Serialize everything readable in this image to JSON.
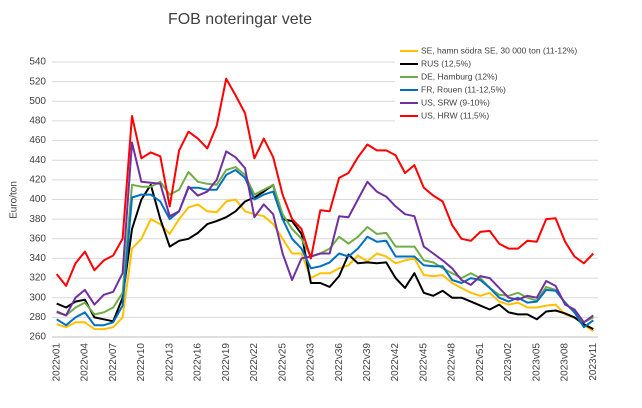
{
  "chart_data": {
    "type": "line",
    "title": "FOB noteringar vete",
    "y_label": "Euro/ton",
    "categories": [
      "2022v01",
      null,
      null,
      "2022v04",
      null,
      null,
      "2022v07",
      null,
      null,
      "2022v10",
      null,
      null,
      "2022v13",
      null,
      null,
      "2022v16",
      null,
      null,
      "2022v19",
      null,
      null,
      "2022v22",
      null,
      null,
      "2022v25",
      null,
      null,
      "2022v33",
      null,
      null,
      "2022v36",
      null,
      null,
      "2022v39",
      null,
      null,
      "2022v42",
      null,
      null,
      "2022v45",
      null,
      null,
      "2022v48",
      null,
      null,
      "2022v51",
      null,
      null,
      "2023v02",
      null,
      null,
      "2023v05",
      null,
      null,
      "2023v08",
      null,
      null,
      "2023v11"
    ],
    "ylim": [
      260,
      540
    ],
    "yticks": [
      260,
      280,
      300,
      320,
      340,
      360,
      380,
      400,
      420,
      440,
      460,
      480,
      500,
      520,
      540
    ],
    "grid": true,
    "series": [
      {
        "name": "SE, hamn södra SE, 30 000 ton (11-12%)",
        "color": "#ffc000",
        "values": [
          273,
          270,
          275,
          275,
          268,
          268,
          270,
          280,
          350,
          360,
          380,
          375,
          365,
          380,
          392,
          395,
          388,
          387,
          398,
          400,
          388,
          385,
          383,
          375,
          360,
          345,
          345,
          320,
          325,
          325,
          330,
          333,
          343,
          337,
          345,
          342,
          335,
          338,
          340,
          323,
          322,
          323,
          315,
          310,
          305,
          302,
          305,
          296,
          293,
          295,
          290,
          290,
          292,
          293,
          283,
          280,
          272,
          266
        ]
      },
      {
        "name": "RUS (12,5%)",
        "color": "#000000",
        "values": [
          294,
          290,
          296,
          298,
          280,
          278,
          276,
          300,
          370,
          400,
          415,
          380,
          352,
          358,
          360,
          366,
          375,
          378,
          382,
          388,
          398,
          402,
          408,
          415,
          380,
          378,
          365,
          315,
          315,
          311,
          322,
          344,
          335,
          336,
          335,
          336,
          320,
          310,
          325,
          305,
          302,
          307,
          300,
          300,
          296,
          292,
          288,
          293,
          285,
          283,
          283,
          278,
          286,
          287,
          284,
          280,
          273,
          268
        ]
      },
      {
        "name": "DE, Hamburg (12%)",
        "color": "#70ad47",
        "values": [
          285,
          282,
          290,
          295,
          283,
          285,
          290,
          305,
          415,
          413,
          413,
          418,
          405,
          410,
          428,
          418,
          416,
          415,
          430,
          433,
          425,
          405,
          410,
          415,
          385,
          370,
          360,
          342,
          345,
          350,
          362,
          355,
          362,
          372,
          365,
          366,
          352,
          352,
          352,
          338,
          336,
          330,
          325,
          320,
          325,
          320,
          310,
          303,
          302,
          305,
          300,
          297,
          311,
          308,
          295,
          285,
          275,
          280
        ]
      },
      {
        "name": "FR, Rouen (11-12,5%)",
        "color": "#0070c0",
        "values": [
          278,
          272,
          280,
          285,
          272,
          272,
          275,
          292,
          402,
          405,
          405,
          398,
          380,
          388,
          412,
          412,
          410,
          410,
          425,
          430,
          422,
          400,
          405,
          408,
          380,
          360,
          350,
          330,
          332,
          336,
          345,
          342,
          350,
          362,
          357,
          358,
          342,
          342,
          342,
          333,
          332,
          332,
          318,
          315,
          320,
          318,
          310,
          300,
          296,
          300,
          295,
          296,
          308,
          307,
          295,
          285,
          270,
          277
        ]
      },
      {
        "name": "US, SRW (9-10%)",
        "color": "#7030a0",
        "values": [
          286,
          282,
          300,
          308,
          293,
          303,
          306,
          325,
          458,
          418,
          417,
          416,
          383,
          388,
          413,
          404,
          408,
          420,
          449,
          443,
          432,
          382,
          395,
          385,
          345,
          318,
          340,
          342,
          345,
          345,
          383,
          382,
          400,
          418,
          408,
          403,
          393,
          385,
          383,
          352,
          345,
          338,
          330,
          318,
          313,
          322,
          320,
          310,
          300,
          298,
          302,
          300,
          317,
          312,
          293,
          288,
          275,
          282
        ]
      },
      {
        "name": "US, HRW (11,5%)",
        "color": "#ff0000",
        "values": [
          324,
          312,
          335,
          347,
          328,
          338,
          343,
          360,
          485,
          442,
          448,
          444,
          393,
          450,
          469,
          462,
          452,
          475,
          523,
          506,
          488,
          442,
          462,
          443,
          405,
          380,
          370,
          340,
          389,
          388,
          422,
          427,
          443,
          456,
          450,
          450,
          445,
          427,
          435,
          412,
          404,
          398,
          374,
          360,
          358,
          367,
          368,
          355,
          350,
          350,
          358,
          357,
          380,
          381,
          357,
          342,
          335,
          345
        ]
      }
    ]
  }
}
